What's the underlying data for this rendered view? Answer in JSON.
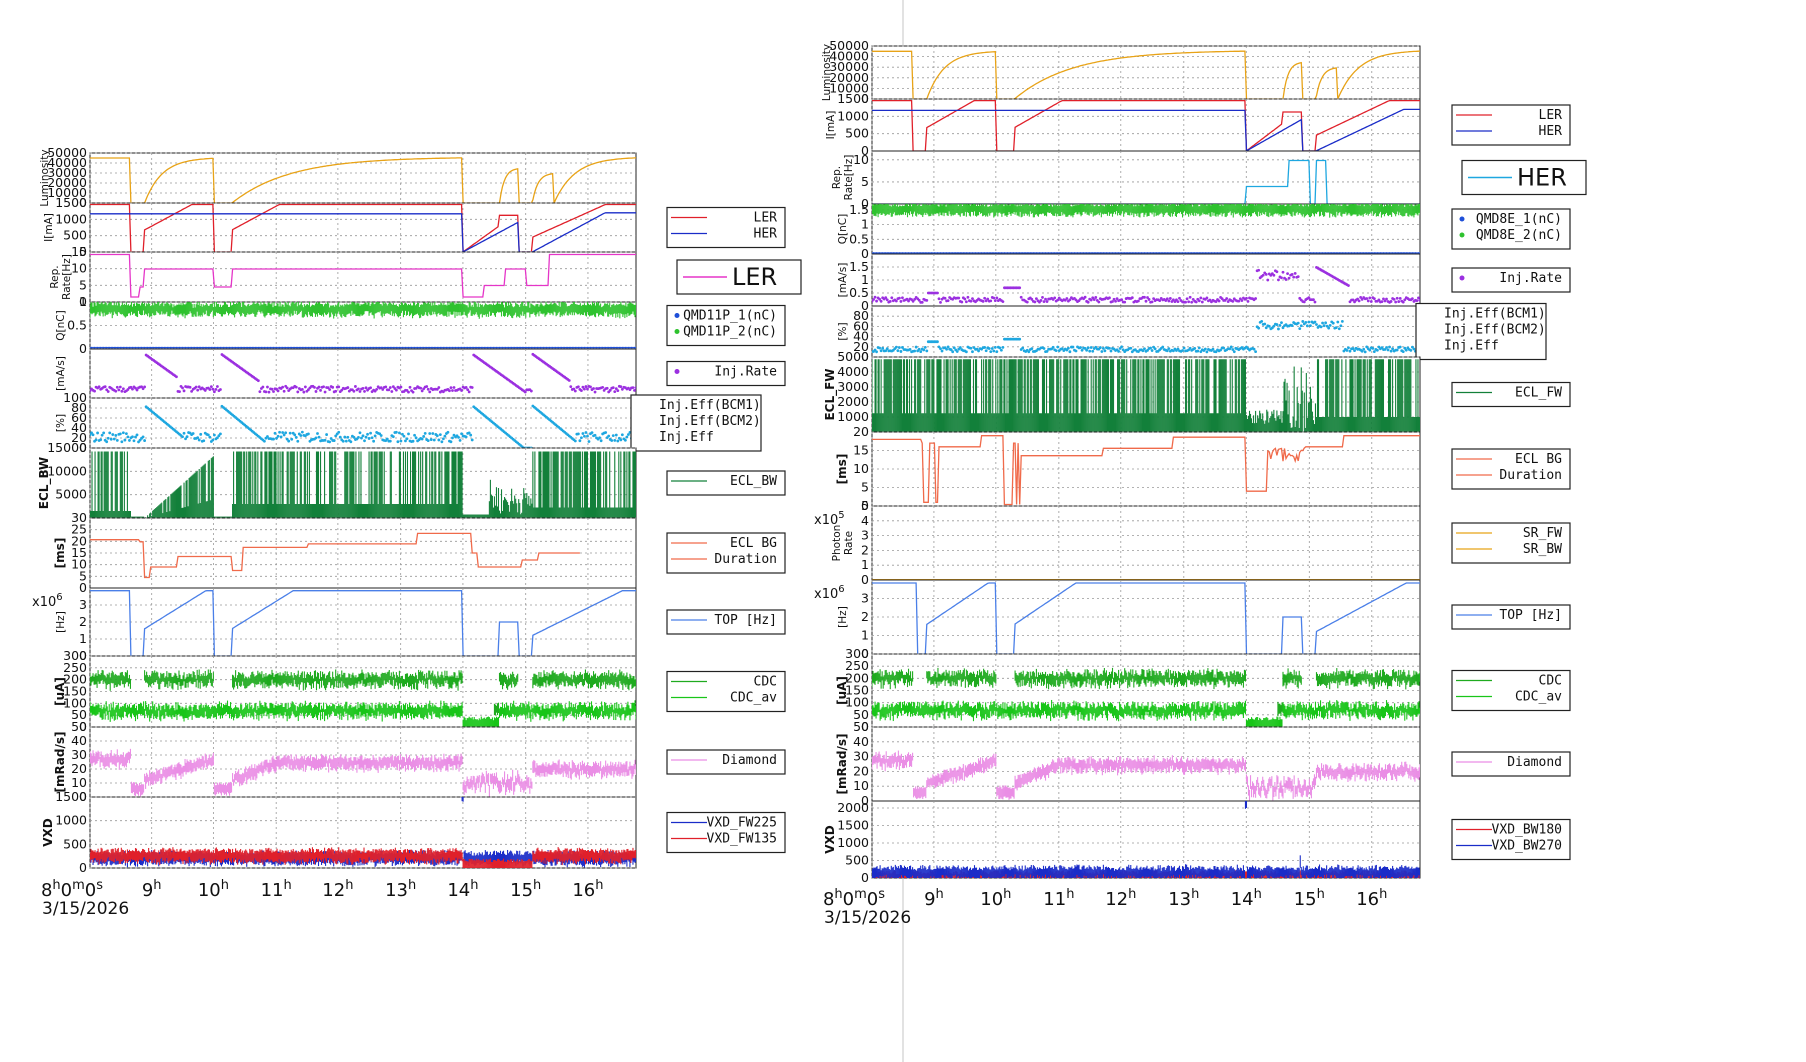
{
  "panels": [
    {
      "id": "left",
      "date_label": "3/15/2026",
      "start_tick": "8h0m0s",
      "time_ticks": [
        "8h0m0s",
        "9h",
        "10h",
        "11h",
        "12h",
        "13h",
        "14h",
        "15h",
        "16h"
      ],
      "rows": [
        {
          "id": "lumi",
          "ylabel": "Luminosity",
          "ylim": [
            0,
            50000
          ],
          "ticks": [
            0,
            10000,
            20000,
            30000,
            40000,
            50000
          ],
          "series": [
            {
              "color": "#e8a317",
              "style": "line",
              "shape": "lumi"
            }
          ]
        },
        {
          "id": "current",
          "ylabel": "I[mA]",
          "ylim": [
            0,
            1500
          ],
          "ticks": [
            0,
            500,
            1000,
            1500
          ],
          "legend": [
            "LER",
            "HER"
          ],
          "series": [
            {
              "name": "LER",
              "color": "#e0202a",
              "style": "line",
              "shape": "ler"
            },
            {
              "name": "HER",
              "color": "#1a2cc8",
              "style": "line",
              "shape": "her"
            }
          ]
        },
        {
          "id": "rep",
          "ylabel": "Rep. Rate[Hz]",
          "ylim": [
            0,
            15
          ],
          "ticks": [
            0,
            5,
            10,
            15
          ],
          "legend_big": "LER",
          "series": [
            {
              "name": "LER",
              "color": "#e535c8",
              "style": "line",
              "shape": "rep_left"
            }
          ]
        },
        {
          "id": "q",
          "ylabel": "Q[nC]",
          "ylim": [
            0,
            1
          ],
          "ticks": [
            0,
            0.5,
            1
          ],
          "legend_dots": [
            "QMD11P_1(nC)",
            "QMD11P_2(nC)"
          ],
          "series": [
            {
              "name": "QMD11P_1(nC)",
              "color": "#1e4fd8",
              "style": "dots",
              "shape": "q1"
            },
            {
              "name": "QMD11P_2(nC)",
              "color": "#2ec22e",
              "style": "band",
              "shape": "q2"
            }
          ]
        },
        {
          "id": "inj",
          "ylabel": "[mA/s]",
          "ylim": [
            0,
            3
          ],
          "ticks": [],
          "legend_dots": [
            "Inj.Rate"
          ],
          "series": [
            {
              "name": "Inj.Rate",
              "color": "#9b30e0",
              "style": "scatter",
              "shape": "inj"
            }
          ]
        },
        {
          "id": "eff",
          "ylabel": "[%]",
          "ylim": [
            0,
            100
          ],
          "ticks": [
            0,
            20,
            40,
            60,
            80,
            100
          ],
          "legend_plain": [
            "Inj.Eff(BCM1)",
            "Inj.Eff(BCM2)",
            "Inj.Eff"
          ],
          "series": [
            {
              "name": "Inj.Eff",
              "color": "#1ea7e0",
              "style": "scatter",
              "shape": "eff"
            }
          ]
        },
        {
          "id": "ecl",
          "ylabel": "ECL_BW",
          "ylim": [
            0,
            15000
          ],
          "ticks": [
            5000,
            10000,
            15000
          ],
          "legend": [
            "ECL_BW"
          ],
          "series": [
            {
              "name": "ECL_BW",
              "color": "#13803a",
              "style": "spiky",
              "shape": "ecl_left"
            }
          ]
        },
        {
          "id": "eclbg",
          "ylabel": "[ms]",
          "ylim": [
            0,
            30
          ],
          "ticks": [
            0,
            5,
            10,
            15,
            20,
            25,
            30
          ],
          "legend": [
            "ECL BG",
            "Duration"
          ],
          "series": [
            {
              "name": "ECL BG Duration",
              "color": "#f06a4a",
              "style": "step",
              "shape": "eclbg_left"
            }
          ]
        },
        {
          "id": "top",
          "ylabel": "[Hz]",
          "ylim": [
            0,
            4
          ],
          "ticks": [
            0,
            1,
            2,
            3
          ],
          "multiplier": "x10",
          "multiplier_exp": "6",
          "legend": [
            "TOP [Hz]"
          ],
          "series": [
            {
              "name": "TOP [Hz]",
              "color": "#4a7fe8",
              "style": "line",
              "shape": "top"
            }
          ]
        },
        {
          "id": "cdc",
          "ylabel": "[uA]",
          "ylim": [
            0,
            300
          ],
          "ticks": [
            0,
            50,
            100,
            150,
            200,
            250,
            300
          ],
          "legend": [
            "CDC",
            "CDC_av"
          ],
          "series": [
            {
              "name": "CDC",
              "color": "#1faa1f",
              "style": "band",
              "shape": "cdc_hi"
            },
            {
              "name": "CDC_av",
              "color": "#19c519",
              "style": "band",
              "shape": "cdc_lo"
            }
          ]
        },
        {
          "id": "diamond",
          "ylabel": "[mRad/s]",
          "ylim": [
            0,
            50
          ],
          "ticks": [
            0,
            10,
            20,
            30,
            40,
            50
          ],
          "legend": [
            "Diamond"
          ],
          "series": [
            {
              "name": "Diamond",
              "color": "#ea8ee5",
              "style": "band",
              "shape": "diamond"
            }
          ]
        },
        {
          "id": "vxd",
          "ylabel": "VXD",
          "ylim": [
            0,
            1500
          ],
          "ticks": [
            0,
            500,
            1000,
            1500
          ],
          "legend": [
            "VXD_FW225",
            "VXD_FW135"
          ],
          "series": [
            {
              "name": "VXD_FW225",
              "color": "#1a2cc8",
              "style": "band",
              "shape": "vxd_left_a"
            },
            {
              "name": "VXD_FW135",
              "color": "#e0202a",
              "style": "band",
              "shape": "vxd_left_b"
            }
          ]
        }
      ]
    },
    {
      "id": "right",
      "date_label": "3/15/2026",
      "start_tick": "8h0m0s",
      "time_ticks": [
        "8h0m0s",
        "9h",
        "10h",
        "11h",
        "12h",
        "13h",
        "14h",
        "15h",
        "16h"
      ],
      "rows": [
        {
          "id": "lumi",
          "ylabel": "Luminosity",
          "ylim": [
            0,
            50000
          ],
          "ticks": [
            0,
            10000,
            20000,
            30000,
            40000,
            50000
          ],
          "series": [
            {
              "color": "#e8a317",
              "style": "line",
              "shape": "lumi"
            }
          ]
        },
        {
          "id": "current",
          "ylabel": "I[mA]",
          "ylim": [
            0,
            1500
          ],
          "ticks": [
            0,
            500,
            1000,
            1500
          ],
          "legend": [
            "LER",
            "HER"
          ],
          "series": [
            {
              "name": "LER",
              "color": "#e0202a",
              "style": "line",
              "shape": "ler"
            },
            {
              "name": "HER",
              "color": "#1a2cc8",
              "style": "line",
              "shape": "her_right"
            }
          ]
        },
        {
          "id": "rep",
          "ylabel": "Rep. Rate[Hz]",
          "ylim": [
            0,
            12
          ],
          "ticks": [
            0,
            5,
            10
          ],
          "legend_big": "HER",
          "series": [
            {
              "name": "HER",
              "color": "#1ea7e0",
              "style": "line",
              "shape": "rep_right"
            }
          ]
        },
        {
          "id": "q",
          "ylabel": "Q[nC]",
          "ylim": [
            0,
            1.7
          ],
          "ticks": [
            0,
            0.5,
            1,
            1.5
          ],
          "legend_dots": [
            "QMD8E_1(nC)",
            "QMD8E_2(nC)"
          ],
          "series": [
            {
              "name": "QMD8E_2(nC)",
              "color": "#2ec22e",
              "style": "band",
              "shape": "q_right"
            },
            {
              "name": "QMD8E_1(nC)",
              "color": "#1e4fd8",
              "style": "dots",
              "shape": "q_right_dots"
            }
          ]
        },
        {
          "id": "inj",
          "ylabel": "[mA/s]",
          "ylim": [
            0,
            2
          ],
          "ticks": [
            0,
            0.5,
            1,
            1.5
          ],
          "legend_dots": [
            "Inj.Rate"
          ],
          "series": [
            {
              "name": "Inj.Rate",
              "color": "#9b30e0",
              "style": "scatter",
              "shape": "inj_right"
            }
          ]
        },
        {
          "id": "eff",
          "ylabel": "[%]",
          "ylim": [
            0,
            100
          ],
          "ticks": [
            0,
            20,
            40,
            60,
            80
          ],
          "legend_plain": [
            "Inj.Eff(BCM1)",
            "Inj.Eff(BCM2)",
            "Inj.Eff"
          ],
          "series": [
            {
              "name": "Inj.Eff",
              "color": "#1ea7e0",
              "style": "scatter",
              "shape": "eff_right"
            }
          ]
        },
        {
          "id": "ecl",
          "ylabel": "ECL_FW",
          "ylim": [
            0,
            5000
          ],
          "ticks": [
            1000,
            2000,
            3000,
            4000,
            5000
          ],
          "legend": [
            "ECL_FW"
          ],
          "series": [
            {
              "name": "ECL_FW",
              "color": "#13803a",
              "style": "spiky",
              "shape": "ecl_right"
            }
          ]
        },
        {
          "id": "eclbg",
          "ylabel": "[ms]",
          "ylim": [
            0,
            20
          ],
          "ticks": [
            0,
            5,
            10,
            15,
            20
          ],
          "legend": [
            "ECL BG",
            "Duration"
          ],
          "series": [
            {
              "name": "ECL BG Duration",
              "color": "#f06a4a",
              "style": "step",
              "shape": "eclbg_right"
            }
          ]
        },
        {
          "id": "sr",
          "ylabel": "Photon Rate",
          "ylim": [
            0,
            5
          ],
          "ticks": [
            0,
            1,
            2,
            3,
            4,
            5
          ],
          "multiplier": "x10",
          "multiplier_exp": "5",
          "legend": [
            "SR_FW",
            "SR_BW"
          ],
          "series": [
            {
              "name": "SR_FW",
              "color": "#e8a317",
              "style": "line",
              "shape": "zero"
            }
          ]
        },
        {
          "id": "top",
          "ylabel": "[Hz]",
          "ylim": [
            0,
            4
          ],
          "ticks": [
            0,
            1,
            2,
            3
          ],
          "multiplier": "x10",
          "multiplier_exp": "6",
          "legend": [
            "TOP [Hz]"
          ],
          "series": [
            {
              "name": "TOP [Hz]",
              "color": "#4a7fe8",
              "style": "line",
              "shape": "top_right"
            }
          ]
        },
        {
          "id": "cdc",
          "ylabel": "[uA]",
          "ylim": [
            0,
            300
          ],
          "ticks": [
            0,
            50,
            100,
            150,
            200,
            250,
            300
          ],
          "legend": [
            "CDC",
            "CDC_av"
          ],
          "series": [
            {
              "name": "CDC",
              "color": "#1faa1f",
              "style": "band",
              "shape": "cdc_hi_r"
            },
            {
              "name": "CDC_av",
              "color": "#19c519",
              "style": "band",
              "shape": "cdc_lo_r"
            }
          ]
        },
        {
          "id": "diamond",
          "ylabel": "[mRad/s]",
          "ylim": [
            0,
            50
          ],
          "ticks": [
            0,
            10,
            20,
            30,
            40,
            50
          ],
          "legend": [
            "Diamond"
          ],
          "series": [
            {
              "name": "Diamond",
              "color": "#ea8ee5",
              "style": "band",
              "shape": "diamond_r"
            }
          ]
        },
        {
          "id": "vxd",
          "ylabel": "VXD",
          "ylim": [
            0,
            2200
          ],
          "ticks": [
            0,
            500,
            1000,
            1500,
            2000
          ],
          "legend": [
            "VXD_BW180",
            "VXD_BW270"
          ],
          "series": [
            {
              "name": "VXD_BW180",
              "color": "#e0202a",
              "style": "band",
              "shape": "vxd_r_a"
            },
            {
              "name": "VXD_BW270",
              "color": "#1a2cc8",
              "style": "band",
              "shape": "vxd_r_b"
            }
          ]
        }
      ]
    }
  ]
}
